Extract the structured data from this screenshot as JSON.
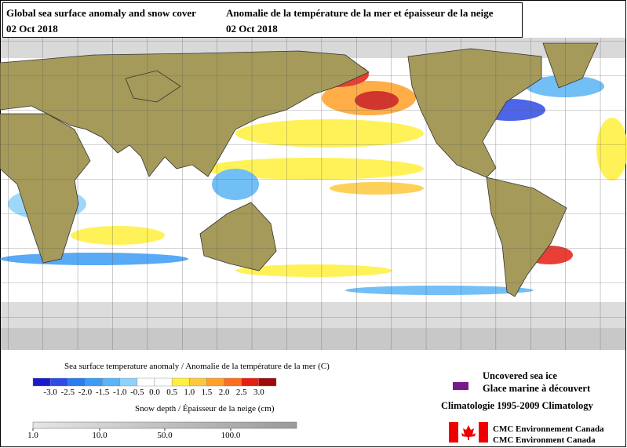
{
  "header": {
    "title_en": "Global sea surface anomaly and snow cover",
    "date_en": "02 Oct 2018",
    "title_fr": "Anomalie de la température de la mer et épaisseur de la neige",
    "date_fr": "02 Oct 2018"
  },
  "legend": {
    "sst_title": "Sea surface temperature anomaly / Anomalie de la température de la mer (C)",
    "sst_labels": [
      "-3.0",
      "-2.5",
      "-2.0",
      "-1.5",
      "-1.0",
      "-0.5",
      "0.0",
      "0.5",
      "1.0",
      "1.5",
      "2.0",
      "2.5",
      "3.0"
    ],
    "sst_colors": [
      "#1a1acd",
      "#2e4be6",
      "#2a7af0",
      "#3c9bf5",
      "#5ab4f5",
      "#8cd2fa",
      "#ffffff",
      "#ffffff",
      "#fff03c",
      "#ffc83c",
      "#ffa028",
      "#ff6e1e",
      "#e61e14",
      "#a00a0a"
    ],
    "snow_title": "Snow depth / Épaisseur de la neige (cm)",
    "snow_labels": [
      "1.0",
      "10.0",
      "50.0",
      "100.0"
    ],
    "ice_en": "Uncovered sea ice",
    "ice_fr": "Glace marine à découvert",
    "ice_color": "#7a1a8a",
    "climatology": "Climatologie 1995-2009 Climatology"
  },
  "agency": {
    "fr": "CMC Environnement Canada",
    "en": "CMC Environment Canada"
  }
}
